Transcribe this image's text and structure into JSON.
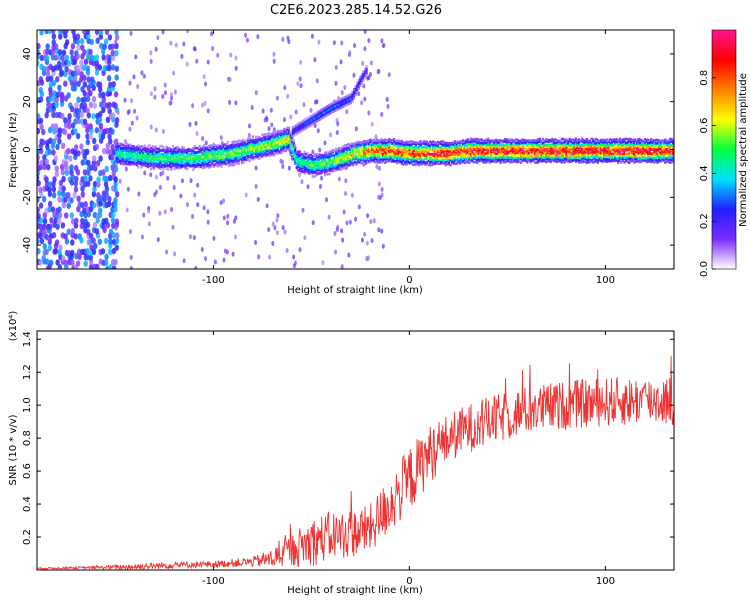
{
  "figure_title": "C2E6.2023.285.14.52.G26",
  "chart_data": [
    {
      "type": "heatmap",
      "title": "",
      "xlabel": "Height of straight line (km)",
      "ylabel": "Frequency (Hz)",
      "xlim": [
        -190,
        135
      ],
      "ylim": [
        -50,
        50
      ],
      "xticks": [
        -100,
        0,
        100
      ],
      "yticks": [
        -40,
        -20,
        0,
        20,
        40
      ],
      "xtick_labels": [
        "-100",
        "0",
        "100"
      ],
      "ytick_labels": [
        "-40",
        "-20",
        "0",
        "20",
        "40"
      ],
      "colorbar": {
        "label": "Normalized spectral amplitude",
        "range": [
          0,
          1
        ],
        "ticks": [
          0.0,
          0.2,
          0.4,
          0.6,
          0.8
        ],
        "tick_labels": [
          "0.0",
          "0.2",
          "0.4",
          "0.6",
          "0.8"
        ],
        "colormap": [
          "#ffffff",
          "#7a2cff",
          "#2020ff",
          "#00e0ff",
          "#00ff40",
          "#ffff00",
          "#ff8000",
          "#ff0000",
          "#ff1493"
        ]
      },
      "ridge": {
        "x": [
          -150,
          -140,
          -130,
          -120,
          -110,
          -100,
          -90,
          -80,
          -70,
          -62,
          -58,
          -50,
          -42,
          -35,
          -28,
          -20,
          -10,
          0,
          10,
          20,
          30,
          40,
          50,
          60,
          70,
          80,
          90,
          100,
          110,
          120,
          135
        ],
        "y": [
          -1,
          -2,
          -3,
          -3,
          -3,
          -2,
          -1,
          1,
          3,
          5,
          -4,
          -6,
          -5,
          -3,
          -1,
          0,
          0,
          -1,
          -1,
          -1,
          0,
          0,
          0,
          0,
          0,
          0,
          0,
          0,
          0,
          0,
          0
        ],
        "amplitude": [
          0.45,
          0.48,
          0.5,
          0.5,
          0.52,
          0.55,
          0.55,
          0.58,
          0.6,
          0.65,
          0.45,
          0.5,
          0.55,
          0.6,
          0.7,
          0.8,
          0.85,
          0.85,
          0.88,
          0.9,
          0.9,
          0.92,
          0.92,
          0.92,
          0.95,
          0.95,
          0.95,
          0.95,
          0.95,
          0.95,
          0.9
        ]
      },
      "branch": {
        "x": [
          -60,
          -50,
          -40,
          -35,
          -30,
          -25,
          -22
        ],
        "y": [
          8,
          13,
          18,
          20,
          22,
          30,
          34
        ],
        "amplitude": [
          0.25,
          0.3,
          0.35,
          0.3,
          0.3,
          0.25,
          0.2
        ]
      },
      "noise_region": {
        "x_range": [
          -190,
          -150
        ],
        "amplitude": 0.3
      }
    },
    {
      "type": "line",
      "title": "",
      "xlabel": "Height of straight line (km)",
      "ylabel": "SNR (10 * v/v)",
      "y_multiplier": "(x10⁴)",
      "color": "#ee3333",
      "xlim": [
        -190,
        135
      ],
      "ylim": [
        0,
        1.45
      ],
      "xticks": [
        -100,
        0,
        100
      ],
      "yticks": [
        0.2,
        0.4,
        0.6,
        0.8,
        1.0,
        1.2,
        1.4
      ],
      "xtick_labels": [
        "-100",
        "0",
        "100"
      ],
      "ytick_labels": [
        "0.2",
        "0.4",
        "0.6",
        "0.8",
        "1.0",
        "1.2",
        "1.4"
      ],
      "envelope": {
        "x": [
          -190,
          -160,
          -140,
          -120,
          -100,
          -80,
          -70,
          -60,
          -50,
          -40,
          -30,
          -20,
          -10,
          0,
          10,
          20,
          30,
          40,
          60,
          80,
          100,
          120,
          135
        ],
        "mean": [
          0.01,
          0.015,
          0.02,
          0.03,
          0.035,
          0.05,
          0.07,
          0.12,
          0.17,
          0.21,
          0.22,
          0.25,
          0.4,
          0.55,
          0.7,
          0.8,
          0.86,
          0.9,
          0.97,
          1.0,
          1.02,
          1.03,
          1.03
        ],
        "spread": [
          0.005,
          0.008,
          0.02,
          0.02,
          0.02,
          0.03,
          0.06,
          0.1,
          0.15,
          0.15,
          0.15,
          0.15,
          0.18,
          0.2,
          0.18,
          0.15,
          0.15,
          0.15,
          0.15,
          0.15,
          0.15,
          0.15,
          0.15
        ]
      }
    }
  ]
}
